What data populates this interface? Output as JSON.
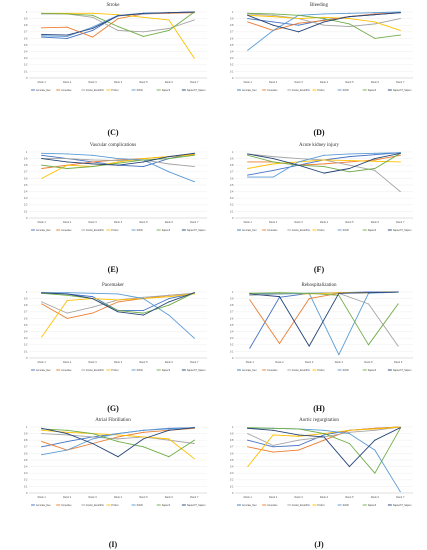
{
  "colors": {
    "Accurate_Neo": "#4472c4",
    "Corevalve": "#ed7d31",
    "Evolut_EvolutPro": "#a5a5a5",
    "Portico": "#ffc000",
    "SAVR": "#5b9bd5",
    "Sapien3": "#70ad47",
    "SapienXT_Sapien": "#264478"
  },
  "captions": [
    "(C)",
    "(D)",
    "(E)",
    "(F)",
    "(G)",
    "(H)",
    "(I)",
    "(J)"
  ],
  "chart_data": [
    {
      "type": "line",
      "title": "Stroke",
      "categories": [
        "Rank 1",
        "Rank 2",
        "Rank 3",
        "Rank 4",
        "Rank 5",
        "Rank 6",
        "Rank 7"
      ],
      "ylim": [
        0,
        1
      ],
      "yticks": [
        "0",
        "0.1",
        "0.2",
        "0.3",
        "0.4",
        "0.5",
        "0.6",
        "0.7",
        "0.8",
        "0.9",
        "1"
      ],
      "grid": true,
      "legend": "bottom",
      "series": [
        {
          "name": "Accurate_Neo",
          "values": [
            0.62,
            0.6,
            0.72,
            0.95,
            0.98,
            0.99,
            1.0
          ]
        },
        {
          "name": "Corevalve",
          "values": [
            0.76,
            0.77,
            0.62,
            0.9,
            0.97,
            0.98,
            0.99
          ]
        },
        {
          "name": "Evolut_EvolutPro",
          "values": [
            0.97,
            0.97,
            0.92,
            0.72,
            0.7,
            0.75,
            0.88
          ]
        },
        {
          "name": "Portico",
          "values": [
            0.98,
            0.98,
            0.98,
            0.96,
            0.92,
            0.88,
            0.3
          ]
        },
        {
          "name": "SAVR",
          "values": [
            0.64,
            0.63,
            0.77,
            0.95,
            0.97,
            0.99,
            1.0
          ]
        },
        {
          "name": "Sapien3",
          "values": [
            0.98,
            0.97,
            0.95,
            0.78,
            0.63,
            0.72,
            1.0
          ]
        },
        {
          "name": "SapienXT_Sapien",
          "values": [
            0.66,
            0.65,
            0.75,
            0.94,
            0.98,
            0.99,
            1.0
          ]
        }
      ]
    },
    {
      "type": "line",
      "title": "Bleeding",
      "categories": [
        "Rank 1",
        "Rank 2",
        "Rank 3",
        "Rank 4",
        "Rank 5",
        "Rank 6",
        "Rank 7"
      ],
      "ylim": [
        0,
        1
      ],
      "yticks": [
        "0",
        "0.1",
        "0.2",
        "0.3",
        "0.4",
        "0.5",
        "0.6",
        "0.7",
        "0.8",
        "0.9",
        "1"
      ],
      "grid": true,
      "legend": "bottom",
      "series": [
        {
          "name": "Accurate_Neo",
          "values": [
            0.9,
            0.85,
            0.8,
            0.88,
            0.93,
            0.96,
            0.99
          ]
        },
        {
          "name": "Corevalve",
          "values": [
            0.85,
            0.72,
            0.83,
            0.87,
            0.93,
            0.97,
            0.99
          ]
        },
        {
          "name": "Evolut_EvolutPro",
          "values": [
            0.97,
            0.95,
            0.9,
            0.8,
            0.78,
            0.82,
            0.9
          ]
        },
        {
          "name": "Portico",
          "values": [
            0.95,
            0.93,
            0.9,
            0.92,
            0.9,
            0.85,
            0.72
          ]
        },
        {
          "name": "SAVR",
          "values": [
            0.42,
            0.72,
            0.95,
            0.97,
            0.98,
            0.99,
            1.0
          ]
        },
        {
          "name": "Sapien3",
          "values": [
            0.98,
            0.97,
            0.95,
            0.9,
            0.82,
            0.6,
            0.65
          ]
        },
        {
          "name": "SapienXT_Sapien",
          "values": [
            0.95,
            0.8,
            0.7,
            0.85,
            0.93,
            0.96,
            0.99
          ]
        }
      ]
    },
    {
      "type": "line",
      "title": "Vascular complications",
      "categories": [
        "Rank 1",
        "Rank 2",
        "Rank 3",
        "Rank 4",
        "Rank 5",
        "Rank 6",
        "Rank 7"
      ],
      "ylim": [
        0,
        1
      ],
      "yticks": [
        "0",
        "0.1",
        "0.2",
        "0.3",
        "0.4",
        "0.5",
        "0.6",
        "0.7",
        "0.8",
        "0.9",
        "1"
      ],
      "grid": true,
      "legend": "bottom",
      "series": [
        {
          "name": "Accurate_Neo",
          "values": [
            0.95,
            0.9,
            0.85,
            0.8,
            0.78,
            0.9,
            0.98
          ]
        },
        {
          "name": "Corevalve",
          "values": [
            0.75,
            0.8,
            0.85,
            0.88,
            0.9,
            0.93,
            0.97
          ]
        },
        {
          "name": "Evolut_EvolutPro",
          "values": [
            0.9,
            0.9,
            0.88,
            0.87,
            0.88,
            0.82,
            0.78
          ]
        },
        {
          "name": "Portico",
          "values": [
            0.6,
            0.8,
            0.78,
            0.85,
            0.9,
            0.93,
            0.96
          ]
        },
        {
          "name": "SAVR",
          "values": [
            0.98,
            0.97,
            0.95,
            0.9,
            0.88,
            0.7,
            0.55
          ]
        },
        {
          "name": "Sapien3",
          "values": [
            0.8,
            0.75,
            0.78,
            0.83,
            0.88,
            0.9,
            0.95
          ]
        },
        {
          "name": "SapienXT_Sapien",
          "values": [
            0.9,
            0.85,
            0.82,
            0.8,
            0.85,
            0.93,
            0.98
          ]
        }
      ]
    },
    {
      "type": "line",
      "title": "Acute kidney injury",
      "categories": [
        "Rank 1",
        "Rank 2",
        "Rank 3",
        "Rank 4",
        "Rank 5",
        "Rank 6",
        "Rank 7"
      ],
      "ylim": [
        0,
        1
      ],
      "yticks": [
        "0",
        "0.1",
        "0.2",
        "0.3",
        "0.4",
        "0.5",
        "0.6",
        "0.7",
        "0.8",
        "0.9",
        "1"
      ],
      "grid": true,
      "legend": "bottom",
      "series": [
        {
          "name": "Accurate_Neo",
          "values": [
            0.65,
            0.72,
            0.8,
            0.88,
            0.93,
            0.96,
            0.99
          ]
        },
        {
          "name": "Corevalve",
          "values": [
            0.85,
            0.85,
            0.8,
            0.82,
            0.85,
            0.88,
            0.95
          ]
        },
        {
          "name": "Evolut_EvolutPro",
          "values": [
            0.97,
            0.93,
            0.9,
            0.88,
            0.8,
            0.72,
            0.4
          ]
        },
        {
          "name": "Portico",
          "values": [
            0.75,
            0.82,
            0.85,
            0.88,
            0.87,
            0.86,
            0.85
          ]
        },
        {
          "name": "SAVR",
          "values": [
            0.62,
            0.62,
            0.85,
            0.95,
            0.97,
            0.98,
            0.99
          ]
        },
        {
          "name": "Sapien3",
          "values": [
            0.95,
            0.85,
            0.8,
            0.78,
            0.7,
            0.75,
            0.98
          ]
        },
        {
          "name": "SapienXT_Sapien",
          "values": [
            0.97,
            0.9,
            0.8,
            0.68,
            0.75,
            0.9,
            0.98
          ]
        }
      ]
    },
    {
      "type": "line",
      "title": "Pacemaker",
      "categories": [
        "Rank 1",
        "Rank 2",
        "Rank 3",
        "Rank 4",
        "Rank 5",
        "Rank 6",
        "Rank 7"
      ],
      "ylim": [
        0,
        1
      ],
      "yticks": [
        "0",
        "0.1",
        "0.2",
        "0.3",
        "0.4",
        "0.5",
        "0.6",
        "0.7",
        "0.8",
        "0.9",
        "1"
      ],
      "grid": true,
      "legend": "bottom",
      "series": [
        {
          "name": "Accurate_Neo",
          "values": [
            0.98,
            0.97,
            0.93,
            0.72,
            0.72,
            0.9,
            0.98
          ]
        },
        {
          "name": "Corevalve",
          "values": [
            0.82,
            0.6,
            0.68,
            0.85,
            0.9,
            0.95,
            0.98
          ]
        },
        {
          "name": "Evolut_EvolutPro",
          "values": [
            0.85,
            0.68,
            0.77,
            0.88,
            0.92,
            0.95,
            0.98
          ]
        },
        {
          "name": "Portico",
          "values": [
            0.32,
            0.87,
            0.9,
            0.88,
            0.9,
            0.93,
            0.97
          ]
        },
        {
          "name": "SAVR",
          "values": [
            0.99,
            0.99,
            0.98,
            0.97,
            0.9,
            0.65,
            0.3
          ]
        },
        {
          "name": "Sapien3",
          "values": [
            0.98,
            0.95,
            0.9,
            0.72,
            0.68,
            0.8,
            0.99
          ]
        },
        {
          "name": "SapienXT_Sapien",
          "values": [
            0.99,
            0.97,
            0.9,
            0.7,
            0.65,
            0.85,
            0.99
          ]
        }
      ]
    },
    {
      "type": "line",
      "title": "Rehospitalization",
      "categories": [
        "Rank 1",
        "Rank 2",
        "Rank 3",
        "Rank 4",
        "Rank 5",
        "Rank 6"
      ],
      "ylim": [
        0,
        1
      ],
      "yticks": [
        "0",
        "0.1",
        "0.2",
        "0.3",
        "0.4",
        "0.5",
        "0.6",
        "0.7",
        "0.8",
        "0.9",
        "1"
      ],
      "grid": true,
      "legend": "bottom",
      "series": [
        {
          "name": "Accurate_Neo",
          "values": [
            0.15,
            0.92,
            0.98,
            0.99,
            1.0,
            1.0
          ]
        },
        {
          "name": "Corevalve",
          "values": [
            0.88,
            0.22,
            0.9,
            0.98,
            0.99,
            1.0
          ]
        },
        {
          "name": "Evolut_EvolutPro",
          "values": [
            0.95,
            0.97,
            0.98,
            0.98,
            0.82,
            0.18
          ]
        },
        {
          "name": "Portico",
          "values": [
            0.98,
            0.98,
            0.97,
            0.99,
            0.99,
            1.0
          ]
        },
        {
          "name": "SAVR",
          "values": [
            0.98,
            0.97,
            0.98,
            0.05,
            0.98,
            1.0
          ]
        },
        {
          "name": "Sapien3",
          "values": [
            0.98,
            0.99,
            0.98,
            0.95,
            0.2,
            0.82
          ]
        },
        {
          "name": "SapienXT_Sapien",
          "values": [
            0.97,
            0.93,
            0.18,
            0.98,
            0.99,
            1.0
          ]
        }
      ]
    },
    {
      "type": "line",
      "title": "Atrial Fibrillation",
      "categories": [
        "Rank 1",
        "Rank 2",
        "Rank 3",
        "Rank 4",
        "Rank 5",
        "Rank 6",
        "Rank 7"
      ],
      "ylim": [
        0,
        1
      ],
      "yticks": [
        "0",
        "0.1",
        "0.2",
        "0.3",
        "0.4",
        "0.5",
        "0.6",
        "0.7",
        "0.8",
        "0.9",
        "1"
      ],
      "grid": true,
      "legend": "bottom",
      "series": [
        {
          "name": "Accurate_Neo",
          "values": [
            0.7,
            0.78,
            0.85,
            0.9,
            0.95,
            0.98,
            0.99
          ]
        },
        {
          "name": "Corevalve",
          "values": [
            0.78,
            0.65,
            0.75,
            0.85,
            0.92,
            0.95,
            0.98
          ]
        },
        {
          "name": "Evolut_EvolutPro",
          "values": [
            0.9,
            0.88,
            0.85,
            0.82,
            0.85,
            0.8,
            0.75
          ]
        },
        {
          "name": "Portico",
          "values": [
            0.95,
            0.92,
            0.9,
            0.88,
            0.85,
            0.82,
            0.52
          ]
        },
        {
          "name": "SAVR",
          "values": [
            0.58,
            0.65,
            0.82,
            0.9,
            0.95,
            0.97,
            0.99
          ]
        },
        {
          "name": "Sapien3",
          "values": [
            0.97,
            0.95,
            0.9,
            0.78,
            0.7,
            0.55,
            0.8
          ]
        },
        {
          "name": "SapienXT_Sapien",
          "values": [
            0.98,
            0.9,
            0.75,
            0.55,
            0.82,
            0.95,
            0.99
          ]
        }
      ]
    },
    {
      "type": "line",
      "title": "Aortic regurgitation",
      "categories": [
        "Rank 1",
        "Rank 2",
        "Rank 3",
        "Rank 4",
        "Rank 5",
        "Rank 6",
        "Rank 7"
      ],
      "ylim": [
        0,
        1
      ],
      "yticks": [
        "0",
        "0.1",
        "0.2",
        "0.3",
        "0.4",
        "0.5",
        "0.6",
        "0.7",
        "0.8",
        "0.9",
        "1"
      ],
      "grid": true,
      "legend": "bottom",
      "series": [
        {
          "name": "Accurate_Neo",
          "values": [
            0.8,
            0.7,
            0.72,
            0.88,
            0.95,
            0.98,
            1.0
          ]
        },
        {
          "name": "Corevalve",
          "values": [
            0.7,
            0.62,
            0.65,
            0.8,
            0.95,
            0.98,
            1.0
          ]
        },
        {
          "name": "Evolut_EvolutPro",
          "values": [
            0.9,
            0.72,
            0.8,
            0.85,
            0.92,
            0.95,
            1.0
          ]
        },
        {
          "name": "Portico",
          "values": [
            0.4,
            0.88,
            0.86,
            0.9,
            0.95,
            0.97,
            1.0
          ]
        },
        {
          "name": "SAVR",
          "values": [
            0.98,
            0.98,
            0.97,
            0.95,
            0.9,
            0.65,
            0.02
          ]
        },
        {
          "name": "Sapien3",
          "values": [
            0.99,
            0.98,
            0.97,
            0.9,
            0.75,
            0.3,
            0.98
          ]
        },
        {
          "name": "SapienXT_Sapien",
          "values": [
            0.98,
            0.95,
            0.88,
            0.85,
            0.4,
            0.8,
            0.99
          ]
        }
      ]
    }
  ]
}
